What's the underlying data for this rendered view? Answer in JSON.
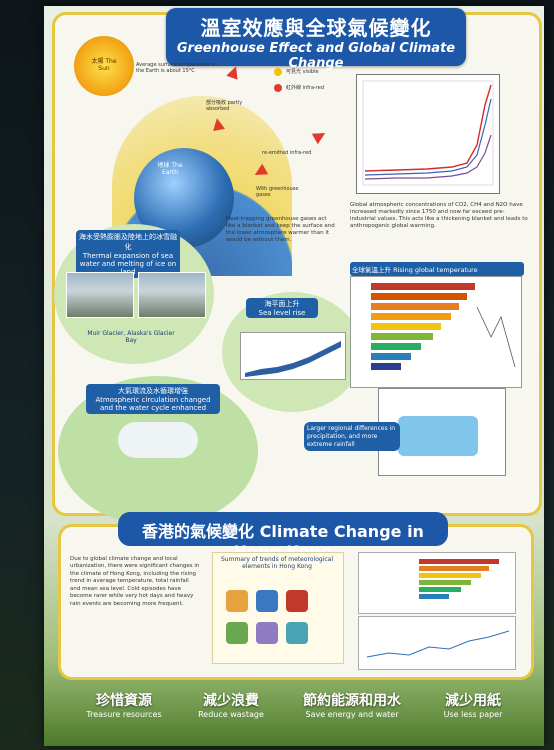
{
  "title": {
    "zh": "溫室效應與全球氣候變化",
    "en": "Greenhouse Effect and Global Climate Change"
  },
  "diagram": {
    "sun_label": "太陽 The Sun",
    "earth_label": "地球 The Earth",
    "visible": "可見光 visible",
    "infrared": "紅外線 infra-red",
    "partly_absorbed": "部分吸收 partly absorbed",
    "reemitted": "re-emitted infra-red",
    "ghg": "With greenhouse gases",
    "avg_temp": "Average surface temperature on the Earth is about 15°C"
  },
  "ghg_caption": "Global atmospheric concentrations of CO2, CH4 and N2O have increased markedly since 1750 and now far exceed pre-industrial values. This acts like a thickening blanket and leads to anthropogenic global warming.",
  "mid_text": "Heat-trapping greenhouse gases act like a blanket and keep the surface and the lower atmosphere warmer than it would be without them.",
  "thermal": {
    "zh": "海水受熱膨脹及陸地上的冰雪融化",
    "en": "Thermal expansion of sea water and melting of ice on land",
    "caption": "Muir Glacier, Alaska's Glacier Bay"
  },
  "sea": {
    "zh": "海平面上升",
    "en": "Sea level rise"
  },
  "temp": {
    "title": "全球氣溫上升 Rising global temperature"
  },
  "atmos": {
    "zh": "大氣環流及水循環增強",
    "en": "Atmospheric circulation changed and the water cycle enhanced"
  },
  "regional": "Larger regional differences in precipitation, and more extreme rainfall",
  "hk": {
    "title": "香港的氣候變化 Climate Change in Hong Kong",
    "text": "Due to global climate change and local urbanization, there were significant changes in the climate of Hong Kong, including the rising trend in average temperature, total rainfall and mean sea level. Cold episodes have become rarer while very hot days and heavy rain events are becoming more frequent.",
    "summary_title": "Summary of trends of meteorological elements in Hong Kong"
  },
  "bottom": [
    {
      "zh": "珍惜資源",
      "en": "Treasure resources"
    },
    {
      "zh": "減少浪費",
      "en": "Reduce wastage"
    },
    {
      "zh": "節約能源和用水",
      "en": "Save energy and water"
    },
    {
      "zh": "減少用紙",
      "en": "Use less paper"
    }
  ]
}
